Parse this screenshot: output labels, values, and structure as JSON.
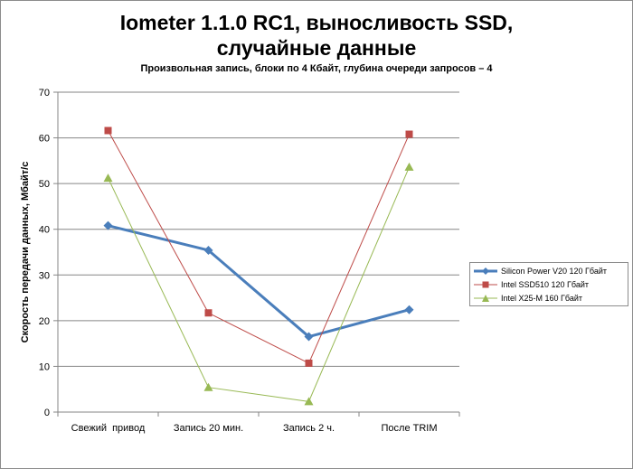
{
  "chart_data": {
    "type": "line",
    "title_line1": "Iometer 1.1.0 RC1, выносливость SSD,",
    "title_line2": "случайные данные",
    "subtitle": "Произвольная  запись, блоки по 4 Кбайт, глубина очереди запросов  – 4",
    "ylabel": "Скорость передачи данных, Мбайт/с",
    "xlabel": "",
    "ylim": [
      0,
      70
    ],
    "ytick_step": 10,
    "grid": true,
    "legend_position": "right",
    "categories": [
      "Свежий  привод",
      "Запись 20 мин.",
      "Запись 2 ч.",
      "После TRIM"
    ],
    "series": [
      {
        "name": "Silicon Power V20 120 Гбайт",
        "values": [
          40.8,
          35.4,
          16.5,
          22.4
        ],
        "color": "#4a7ebb",
        "marker": "diamond",
        "width": 3
      },
      {
        "name": "Intel SSD510 120 Гбайт",
        "values": [
          61.6,
          21.7,
          10.7,
          60.8
        ],
        "color": "#be4b48",
        "marker": "square",
        "width": 1
      },
      {
        "name": "Intel X25-M 160 Гбайт",
        "values": [
          51.2,
          5.4,
          2.3,
          53.6
        ],
        "color": "#98b954",
        "marker": "triangle",
        "width": 1
      }
    ]
  }
}
